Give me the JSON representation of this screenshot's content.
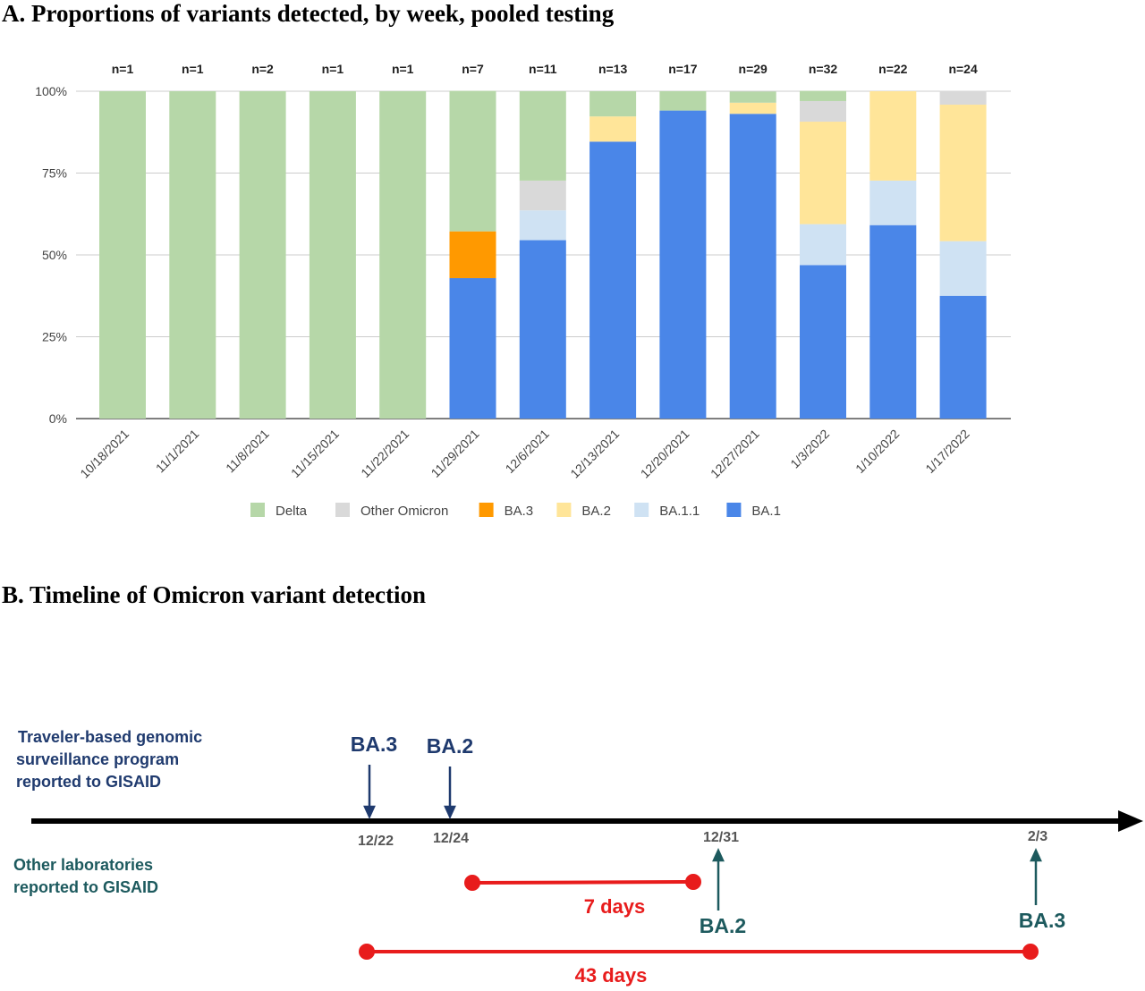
{
  "chart_data": [
    {
      "type": "bar",
      "stacked": true,
      "title": "A. Proportions of variants detected, by week, pooled testing",
      "categories": [
        "10/18/2021",
        "11/1/2021",
        "11/8/2021",
        "11/15/2021",
        "11/22/2021",
        "11/29/2021",
        "12/6/2021",
        "12/13/2021",
        "12/20/2021",
        "12/27/2021",
        "1/3/2022",
        "1/10/2022",
        "1/17/2022"
      ],
      "sample_sizes": [
        "n=1",
        "n=1",
        "n=2",
        "n=1",
        "n=1",
        "n=7",
        "n=11",
        "n=13",
        "n=17",
        "n=29",
        "n=32",
        "n=22",
        "n=24"
      ],
      "ylim": [
        0,
        100
      ],
      "yticks": [
        "0%",
        "25%",
        "50%",
        "75%",
        "100%"
      ],
      "grid": true,
      "legend_position": "bottom",
      "series": [
        {
          "name": "BA.1",
          "color": "#4a86e8",
          "values": [
            0,
            0,
            0,
            0,
            0,
            42.9,
            54.5,
            84.6,
            94.1,
            93.1,
            46.9,
            59.1,
            37.5
          ]
        },
        {
          "name": "BA.1.1",
          "color": "#cfe2f3",
          "values": [
            0,
            0,
            0,
            0,
            0,
            0,
            9.1,
            0,
            0,
            0,
            12.5,
            13.6,
            16.7
          ]
        },
        {
          "name": "BA.3",
          "color": "#ff9900",
          "values": [
            0,
            0,
            0,
            0,
            0,
            14.3,
            0,
            0,
            0,
            0,
            0,
            0,
            0
          ]
        },
        {
          "name": "BA.2",
          "color": "#ffe599",
          "values": [
            0,
            0,
            0,
            0,
            0,
            0,
            0,
            7.7,
            0,
            3.4,
            31.3,
            27.3,
            41.7
          ]
        },
        {
          "name": "Other Omicron",
          "color": "#d9d9d9",
          "values": [
            0,
            0,
            0,
            0,
            0,
            0,
            9.1,
            0,
            0,
            0,
            6.3,
            0,
            4.2
          ]
        },
        {
          "name": "Delta",
          "color": "#b6d7a8",
          "values": [
            100,
            100,
            100,
            100,
            100,
            42.9,
            27.3,
            7.7,
            5.9,
            3.4,
            3.1,
            0,
            0
          ]
        }
      ],
      "legend_order": [
        "Delta",
        "Other Omicron",
        "BA.3",
        "BA.2",
        "BA.1.1",
        "BA.1"
      ]
    }
  ],
  "timeline": {
    "title": "B. Timeline of Omicron variant detection",
    "row1_label": [
      "Traveler-based genomic",
      "surveillance program",
      "reported to GISAID"
    ],
    "row2_label": [
      "Other laboratories",
      "reported to GISAID"
    ],
    "dates": [
      "12/22",
      "12/24",
      "12/31",
      "2/3"
    ],
    "top_events": [
      "BA.3",
      "BA.2"
    ],
    "bottom_events": [
      "BA.2",
      "BA.3"
    ],
    "spans": [
      "7 days",
      "43 days"
    ],
    "colors": {
      "top": "#1f3a6e",
      "bottom": "#1d5a5e",
      "span": "#e81c1c"
    }
  }
}
